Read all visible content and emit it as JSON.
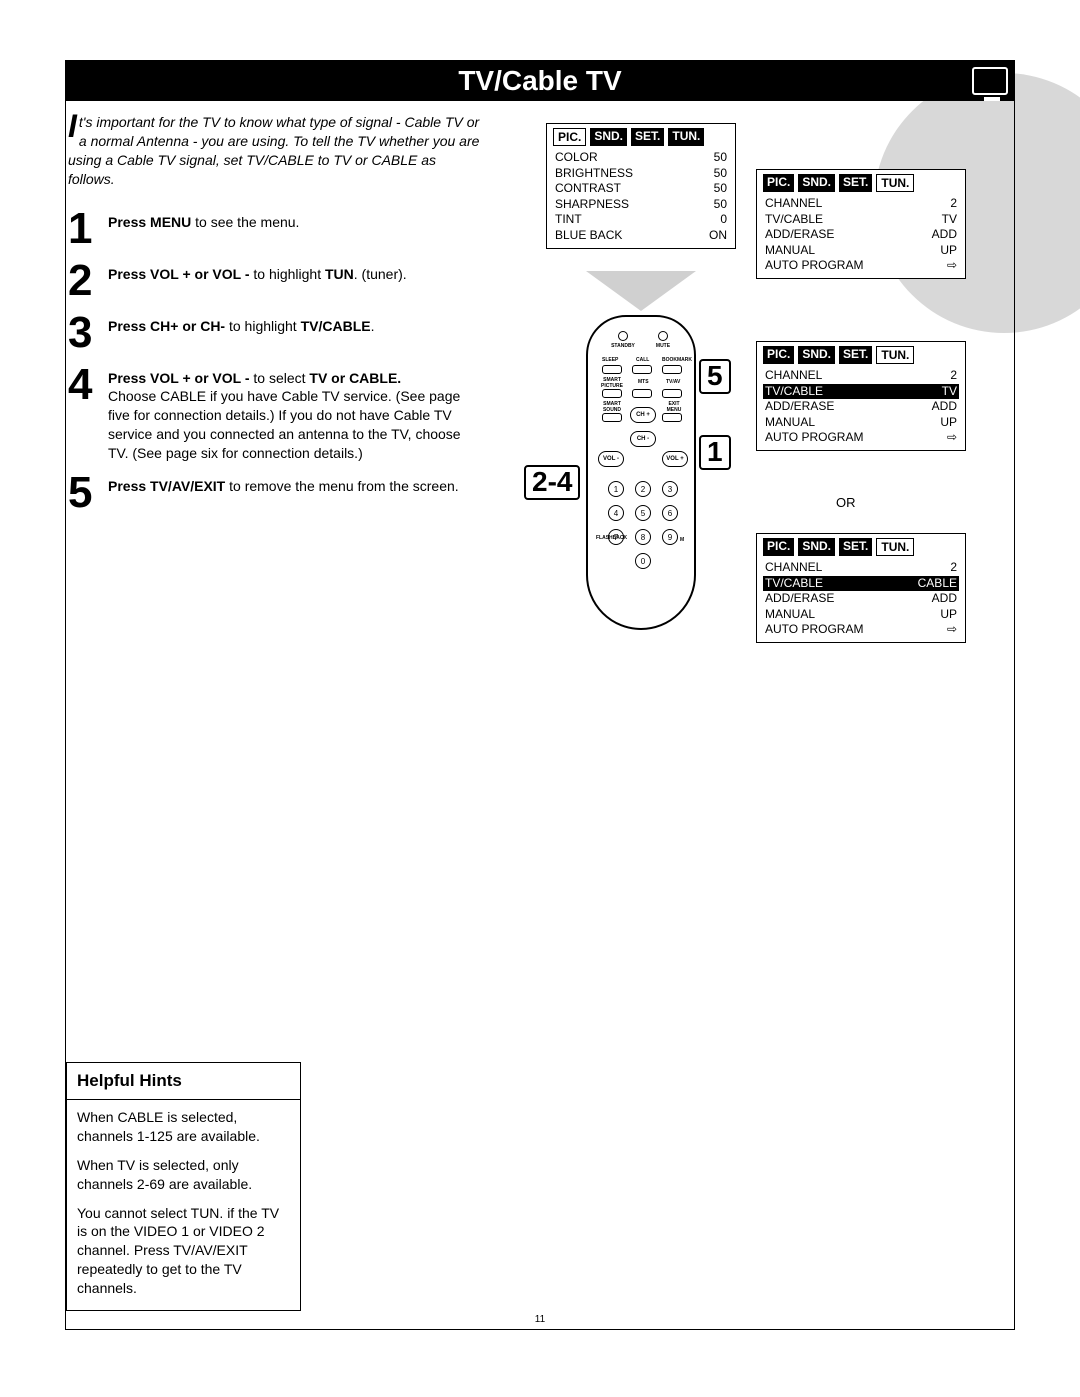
{
  "title": "TV/Cable TV",
  "intro": "t's important for the TV to know what type of signal - Cable TV or a normal Antenna - you are using. To tell the TV whether you are using a Cable TV signal, set TV/CABLE to TV or CABLE as follows.",
  "steps": [
    {
      "num": "1",
      "html": "<b>Press MENU</b> to see the menu."
    },
    {
      "num": "2",
      "html": "<b>Press VOL + or VOL -</b> to highlight <b>TUN</b>. (tuner)."
    },
    {
      "num": "3",
      "html": "<b>Press CH+ or CH-</b> to highlight <b>TV/CABLE</b>."
    },
    {
      "num": "4",
      "html": "<b>Press VOL + or VOL -</b> to select <b>TV or CABLE.</b><br>Choose CABLE if you have Cable TV service. (See page five for connection details.) If you do not have Cable TV service and you connected an antenna to the TV, choose TV. (See page six for connection details.)"
    },
    {
      "num": "5",
      "html": "<b>Press TV/AV/EXIT</b> to remove the menu from the screen."
    }
  ],
  "tabs": [
    "PIC.",
    "SND.",
    "SET.",
    "TUN."
  ],
  "pic_menu": {
    "active_tab": 0,
    "rows": [
      [
        "COLOR",
        "50"
      ],
      [
        "BRIGHTNESS",
        "50"
      ],
      [
        "CONTRAST",
        "50"
      ],
      [
        "SHARPNESS",
        "50"
      ],
      [
        "TINT",
        "0"
      ],
      [
        "BLUE BACK",
        "ON"
      ]
    ]
  },
  "tun_menu_1": {
    "active_tab": 3,
    "rows": [
      [
        "CHANNEL",
        "2"
      ],
      [
        "TV/CABLE",
        "TV"
      ],
      [
        "ADD/ERASE",
        "ADD"
      ],
      [
        "MANUAL",
        "UP"
      ],
      [
        "AUTO PROGRAM",
        "⇨"
      ]
    ],
    "highlight": -1
  },
  "tun_menu_2": {
    "active_tab": 3,
    "rows": [
      [
        "CHANNEL",
        "2"
      ],
      [
        "TV/CABLE",
        "TV"
      ],
      [
        "ADD/ERASE",
        "ADD"
      ],
      [
        "MANUAL",
        "UP"
      ],
      [
        "AUTO PROGRAM",
        "⇨"
      ]
    ],
    "highlight": 1
  },
  "tun_menu_3": {
    "active_tab": 3,
    "rows": [
      [
        "CHANNEL",
        "2"
      ],
      [
        "TV/CABLE",
        "CABLE"
      ],
      [
        "ADD/ERASE",
        "ADD"
      ],
      [
        "MANUAL",
        "UP"
      ],
      [
        "AUTO PROGRAM",
        "⇨"
      ]
    ],
    "highlight": 1
  },
  "or_label": "OR",
  "callouts": {
    "c1": "1",
    "c5": "5",
    "c24": "2-4"
  },
  "remote": {
    "top_labels": [
      "STANDBY",
      "MUTE"
    ],
    "row1": [
      "SLEEP",
      "CALL",
      "BOOKMARK"
    ],
    "row2": [
      "SMART PICTURE",
      "MTS",
      "TV/AV"
    ],
    "row3": [
      "SMART SOUND",
      "",
      "EXIT MENU"
    ],
    "ch": [
      "CH +",
      "CH -"
    ],
    "vol": [
      "VOL -",
      "VOL +"
    ],
    "nums": [
      "1",
      "2",
      "3",
      "4",
      "5",
      "6",
      "7",
      "8",
      "9",
      "0"
    ],
    "bottom_labels": [
      "FLASHBACK",
      "M"
    ]
  },
  "helpful": {
    "title": "Helpful Hints",
    "p1": "When CABLE is selected, channels 1-125 are available.",
    "p2": "When TV is selected, only channels 2-69 are available.",
    "p3": "You cannot select TUN. if the TV is on the VIDEO 1 or VIDEO 2 channel. Press TV/AV/EXIT repeatedly to get to the TV channels."
  },
  "page_number": "11",
  "colors": {
    "bg": "#ffffff",
    "black": "#000000",
    "gray": "#d0d0d0"
  }
}
